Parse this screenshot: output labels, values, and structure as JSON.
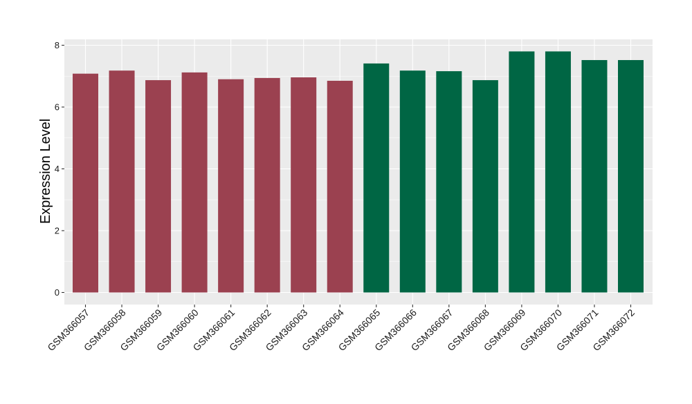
{
  "chart_data": {
    "type": "bar",
    "title": "",
    "xlabel": "",
    "ylabel": "Expression Level",
    "ylim": [
      0,
      8
    ],
    "yticks": [
      0,
      2,
      4,
      6,
      8
    ],
    "grid": true,
    "legend": "none",
    "categories": [
      "GSM366057",
      "GSM366058",
      "GSM366059",
      "GSM366060",
      "GSM366061",
      "GSM366062",
      "GSM366063",
      "GSM366064",
      "GSM366065",
      "GSM366066",
      "GSM366067",
      "GSM366068",
      "GSM366069",
      "GSM366070",
      "GSM366071",
      "GSM366072"
    ],
    "values": [
      7.08,
      7.18,
      6.87,
      7.12,
      6.9,
      6.94,
      6.96,
      6.85,
      7.41,
      7.18,
      7.16,
      6.87,
      7.8,
      7.8,
      7.52,
      7.52
    ],
    "bar_colors": [
      "#9b4150",
      "#9b4150",
      "#9b4150",
      "#9b4150",
      "#9b4150",
      "#9b4150",
      "#9b4150",
      "#9b4150",
      "#006644",
      "#006644",
      "#006644",
      "#006644",
      "#006644",
      "#006644",
      "#006644",
      "#006644"
    ]
  }
}
